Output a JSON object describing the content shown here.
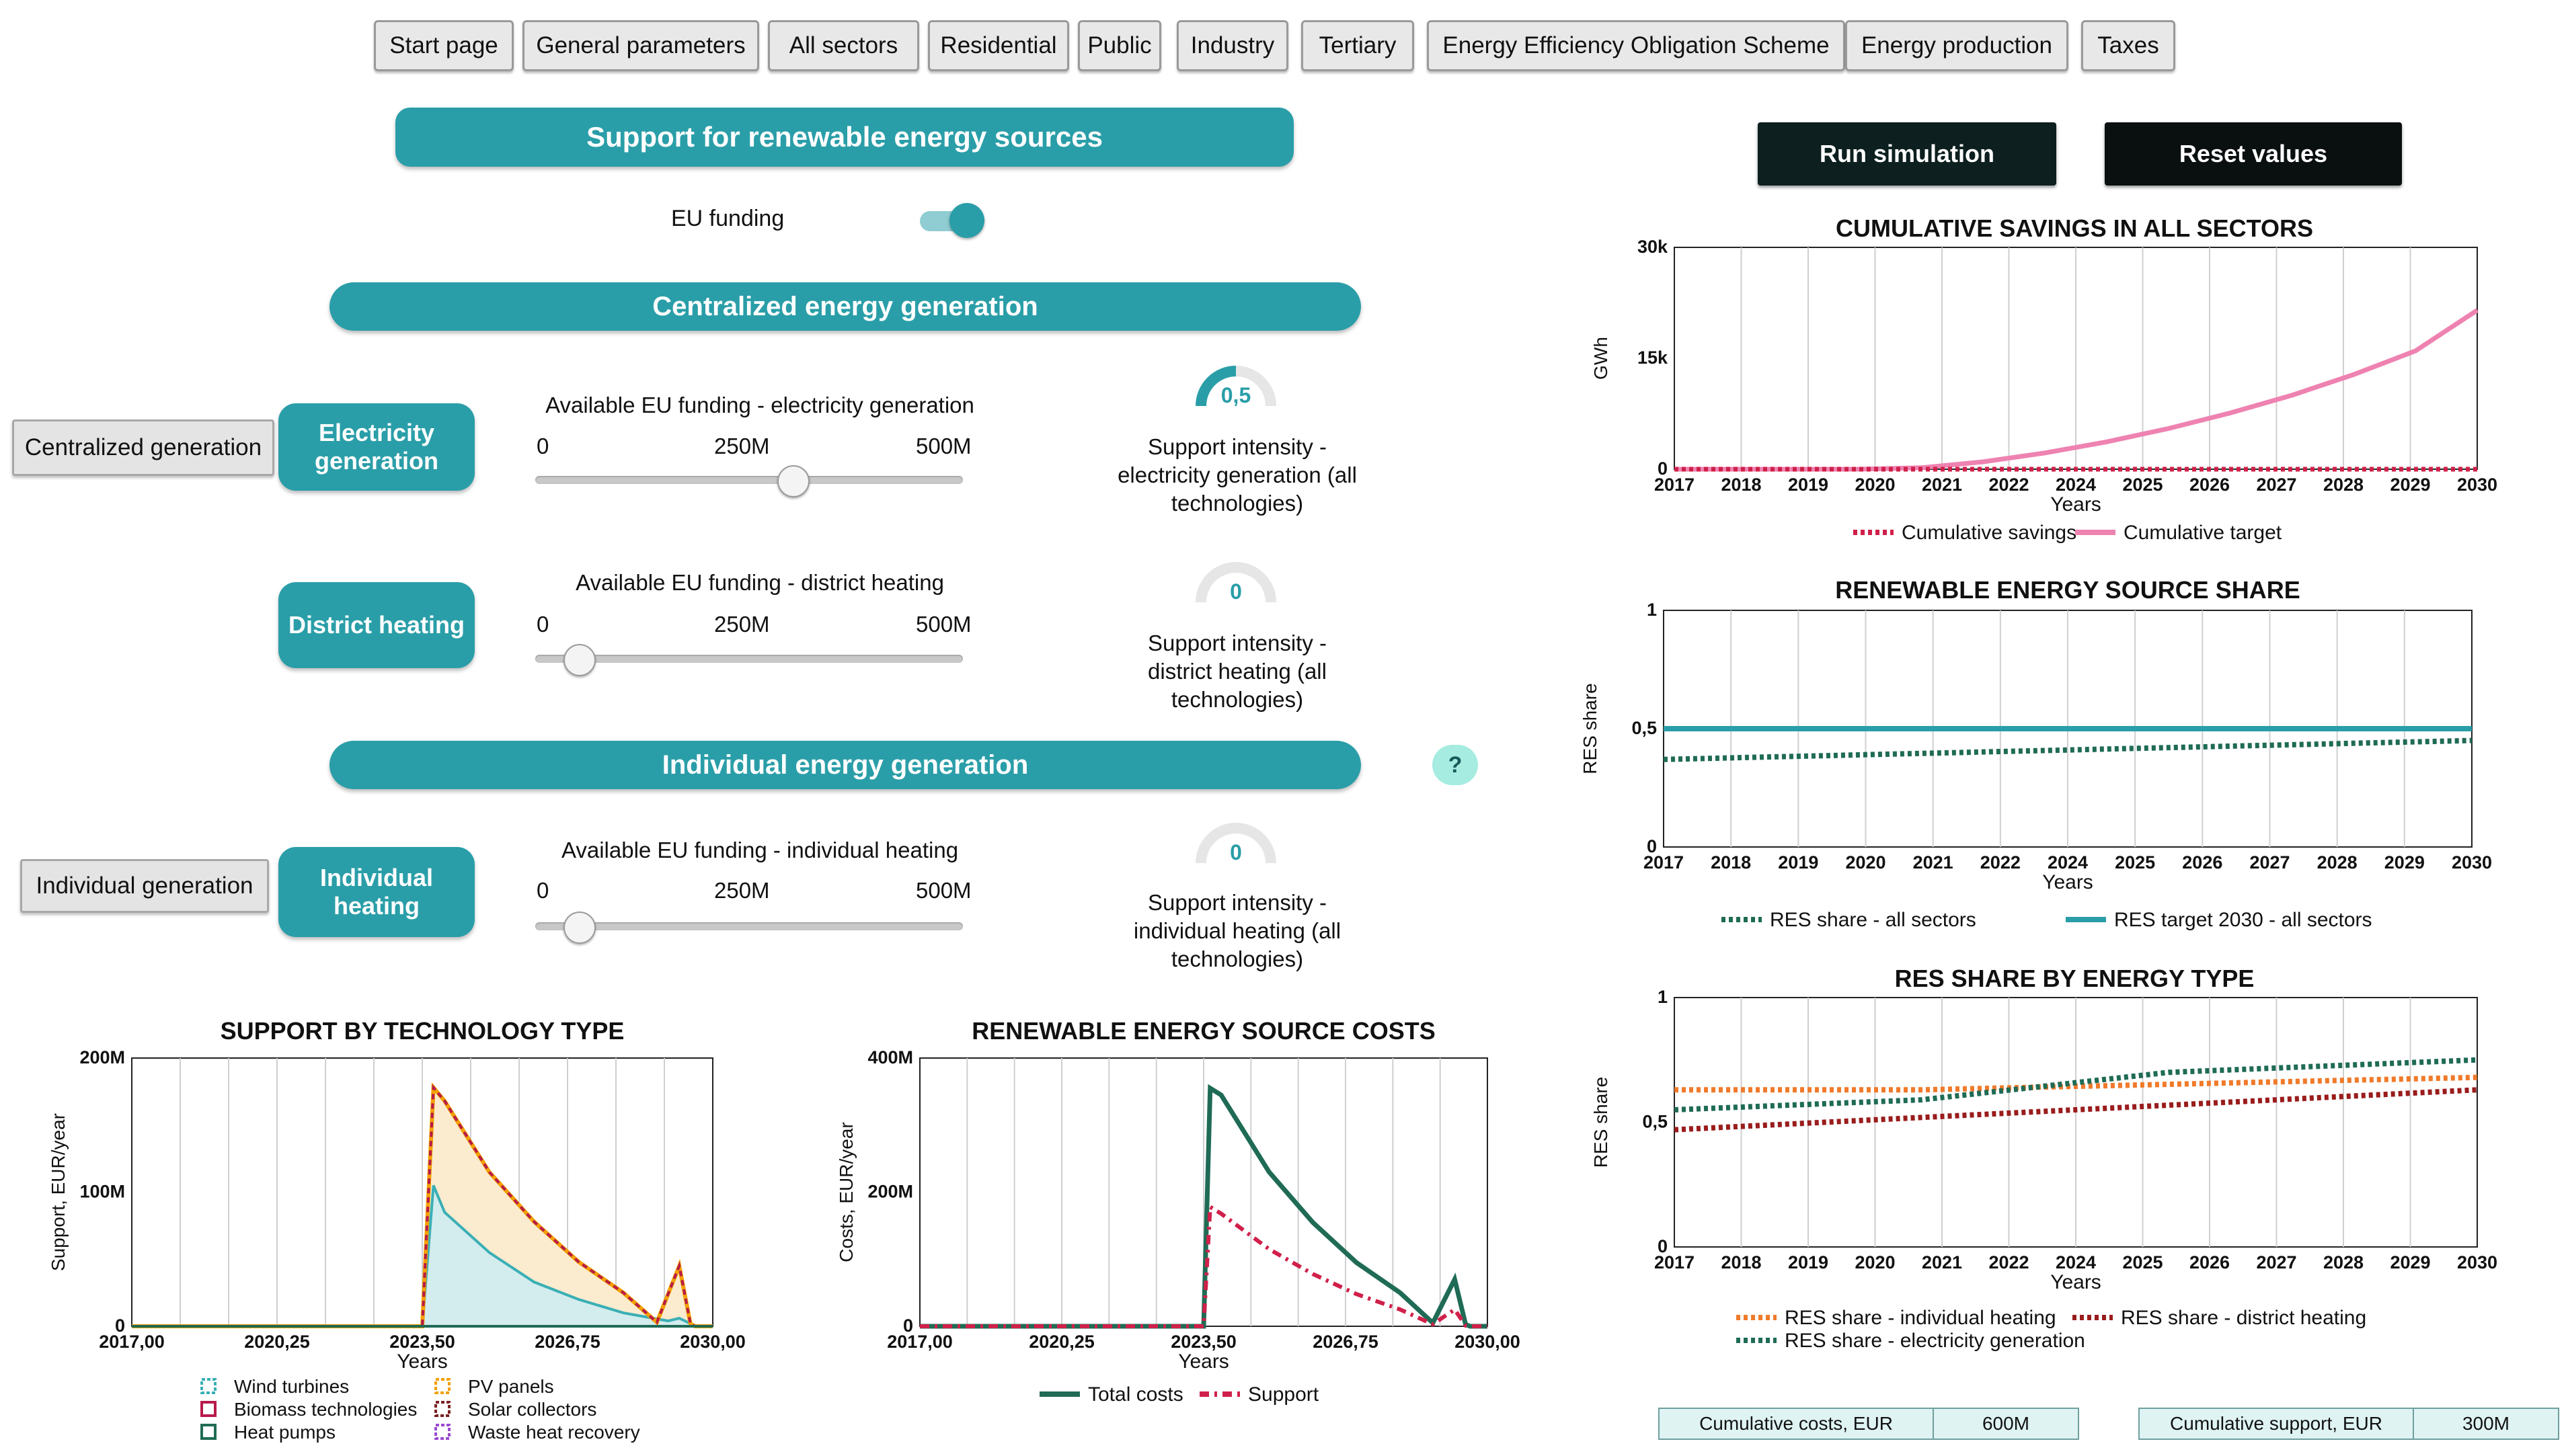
{
  "nav": {
    "tabs": [
      "Start page",
      "General parameters",
      "All sectors",
      "Residential",
      "Public",
      "Industry",
      "Tertiary",
      "Energy Efficiency Obligation Scheme",
      "Energy production",
      "Taxes"
    ]
  },
  "main": {
    "title": "Support for renewable energy sources",
    "eu_funding_label": "EU funding",
    "eu_funding_on": true,
    "centralized": {
      "banner": "Centralized energy generation",
      "side_button": "Centralized generation",
      "electricity": {
        "button": "Electricity generation",
        "slider_title": "Available EU funding - electricity generation",
        "ticks": [
          "0",
          "250M",
          "500M"
        ],
        "value_fraction": 0.6,
        "gauge_value": "0,5",
        "gauge_fraction": 0.5,
        "gauge_label": "Support intensity - electricity generation (all technologies)"
      },
      "district": {
        "button": "District heating",
        "slider_title": "Available EU funding - district heating",
        "ticks": [
          "0",
          "250M",
          "500M"
        ],
        "value_fraction": 0.1,
        "gauge_value": "0",
        "gauge_fraction": 0,
        "gauge_label": "Support intensity - district heating (all technologies)"
      }
    },
    "individual": {
      "banner": "Individual energy generation",
      "help": "?",
      "side_button": "Individual generation",
      "heating": {
        "button": "Individual heating",
        "slider_title": "Available EU funding - individual heating",
        "ticks": [
          "0",
          "250M",
          "500M"
        ],
        "value_fraction": 0.1,
        "gauge_value": "0",
        "gauge_fraction": 0,
        "gauge_label": "Support intensity - individual heating (all technologies)"
      }
    }
  },
  "controls": {
    "run": "Run simulation",
    "reset": "Reset values"
  },
  "kpis": [
    {
      "label": "Cumulative costs, EUR",
      "value": "600M"
    },
    {
      "label": "Cumulative support, EUR",
      "value": "300M"
    }
  ],
  "colors": {
    "teal": "#2a9ea8",
    "dark_green": "#1f6b55",
    "pink": "#ee82b0",
    "crimson": "#d0204a",
    "orange": "#f07a2a",
    "maroon": "#9a1c1c"
  },
  "chart_data": [
    {
      "id": "cumulative",
      "type": "line",
      "title": "CUMULATIVE SAVINGS IN ALL SECTORS",
      "xlabel": "Years",
      "ylabel": "GWh",
      "x_ticks": [
        "2017",
        "2018",
        "2019",
        "2020",
        "2021",
        "2022",
        "2024",
        "2025",
        "2026",
        "2027",
        "2028",
        "2029",
        "2030"
      ],
      "y_ticks": [
        "0",
        "15k",
        "30k"
      ],
      "ylim": [
        0,
        30000
      ],
      "xlim": [
        2017,
        2030
      ],
      "grid": true,
      "legend_position": "bottom",
      "series": [
        {
          "name": "Cumulative savings",
          "x": [
            2017,
            2030
          ],
          "values": [
            0,
            0
          ]
        },
        {
          "name": "Cumulative target",
          "x": [
            2017,
            2020,
            2021,
            2022,
            2023,
            2024,
            2025,
            2026,
            2027,
            2028,
            2029,
            2030
          ],
          "values": [
            0,
            0,
            200,
            1000,
            2200,
            3700,
            5500,
            7600,
            10000,
            12800,
            16000,
            21500
          ]
        }
      ]
    },
    {
      "id": "res_share",
      "type": "line",
      "title": "RENEWABLE ENERGY SOURCE SHARE",
      "xlabel": "Years",
      "ylabel": "RES share",
      "x_ticks": [
        "2017",
        "2018",
        "2019",
        "2020",
        "2021",
        "2022",
        "2024",
        "2025",
        "2026",
        "2027",
        "2028",
        "2029",
        "2030"
      ],
      "y_ticks": [
        "0",
        "0,5",
        "1"
      ],
      "ylim": [
        0,
        1
      ],
      "xlim": [
        2017,
        2030
      ],
      "grid": true,
      "legend_position": "bottom",
      "series": [
        {
          "name": "RES share - all sectors",
          "x": [
            2017,
            2030
          ],
          "values": [
            0.37,
            0.45
          ]
        },
        {
          "name": "RES target 2030 - all sectors",
          "x": [
            2017,
            2030
          ],
          "values": [
            0.5,
            0.5
          ]
        }
      ]
    },
    {
      "id": "res_by_type",
      "type": "line",
      "title": "RES SHARE BY ENERGY TYPE",
      "xlabel": "Years",
      "ylabel": "RES share",
      "x_ticks": [
        "2017",
        "2018",
        "2019",
        "2020",
        "2021",
        "2022",
        "2024",
        "2025",
        "2026",
        "2027",
        "2028",
        "2029",
        "2030"
      ],
      "y_ticks": [
        "0",
        "0,5",
        "1"
      ],
      "ylim": [
        0,
        1
      ],
      "xlim": [
        2017,
        2030
      ],
      "grid": true,
      "legend_position": "bottom",
      "series": [
        {
          "name": "RES share - individual heating",
          "x": [
            2017,
            2021,
            2030
          ],
          "values": [
            0.63,
            0.63,
            0.68
          ]
        },
        {
          "name": "RES share - district heating",
          "x": [
            2017,
            2030
          ],
          "values": [
            0.47,
            0.63
          ]
        },
        {
          "name": "RES share - electricity generation",
          "x": [
            2017,
            2021,
            2025,
            2030
          ],
          "values": [
            0.55,
            0.59,
            0.7,
            0.75
          ]
        }
      ]
    },
    {
      "id": "support_tech",
      "type": "area",
      "title": "SUPPORT BY TECHNOLOGY TYPE",
      "xlabel": "Years",
      "ylabel": "Support, EUR/year",
      "x_ticks": [
        "2017,00",
        "2020,25",
        "2023,50",
        "2026,75",
        "2030,00"
      ],
      "y_ticks": [
        "0",
        "100M",
        "200M"
      ],
      "ylim": [
        0,
        200000000
      ],
      "xlim": [
        2017,
        2030
      ],
      "grid": true,
      "legend_position": "bottom",
      "series": [
        {
          "name": "Wind turbines",
          "x": [
            2017,
            2023.5,
            2023.75,
            2024,
            2025,
            2026,
            2027,
            2028,
            2029,
            2029.25,
            2029.5,
            2029.6,
            2030
          ],
          "values": [
            0,
            0,
            105000000,
            85000000,
            55000000,
            33000000,
            20000000,
            10000000,
            4000000,
            6000000,
            2000000,
            0,
            0
          ]
        },
        {
          "name": "PV panels",
          "x": [
            2017,
            2023.5,
            2030
          ],
          "values": [
            0,
            0,
            0
          ]
        },
        {
          "name": "Biomass technologies",
          "x": [
            2017,
            2023.5,
            2023.75,
            2024,
            2025,
            2026,
            2027,
            2028,
            2028.75,
            2029.25,
            2029.5,
            2029.6,
            2030
          ],
          "values": [
            0,
            0,
            178000000,
            168000000,
            115000000,
            78000000,
            48000000,
            25000000,
            3000000,
            45000000,
            2000000,
            0,
            0
          ]
        },
        {
          "name": "Solar collectors",
          "x": [
            2017,
            2023.5,
            2023.75,
            2024,
            2025,
            2026,
            2027,
            2028,
            2028.75,
            2029.25,
            2029.5,
            2029.6,
            2030
          ],
          "values": [
            0,
            0,
            178000000,
            168000000,
            115000000,
            78000000,
            48000000,
            25000000,
            3000000,
            45000000,
            2000000,
            0,
            0
          ]
        },
        {
          "name": "Heat pumps",
          "x": [
            2017,
            2030
          ],
          "values": [
            0,
            0
          ]
        },
        {
          "name": "Waste heat recovery",
          "x": [
            2017,
            2030
          ],
          "values": [
            0,
            0
          ]
        }
      ]
    },
    {
      "id": "res_costs",
      "type": "line",
      "title": "RENEWABLE ENERGY SOURCE COSTS",
      "xlabel": "Years",
      "ylabel": "Costs, EUR/year",
      "x_ticks": [
        "2017,00",
        "2020,25",
        "2023,50",
        "2026,75",
        "2030,00"
      ],
      "y_ticks": [
        "0",
        "200M",
        "400M"
      ],
      "ylim": [
        0,
        400000000
      ],
      "xlim": [
        2017,
        2030
      ],
      "grid": true,
      "legend_position": "bottom",
      "series": [
        {
          "name": "Total costs",
          "x": [
            2017,
            2023.5,
            2023.65,
            2023.9,
            2025,
            2026,
            2027,
            2028,
            2028.75,
            2029.25,
            2029.5,
            2029.6,
            2030
          ],
          "values": [
            0,
            0,
            355000000,
            345000000,
            230000000,
            155000000,
            95000000,
            50000000,
            5000000,
            70000000,
            3000000,
            0,
            0
          ]
        },
        {
          "name": "Support",
          "x": [
            2017,
            2023.5,
            2023.65,
            2023.9,
            2025,
            2026,
            2027,
            2028,
            2028.75,
            2029.25,
            2029.5,
            2029.6,
            2030
          ],
          "values": [
            0,
            0,
            178000000,
            168000000,
            115000000,
            78000000,
            48000000,
            25000000,
            3000000,
            25000000,
            1000000,
            0,
            0
          ]
        }
      ]
    }
  ]
}
